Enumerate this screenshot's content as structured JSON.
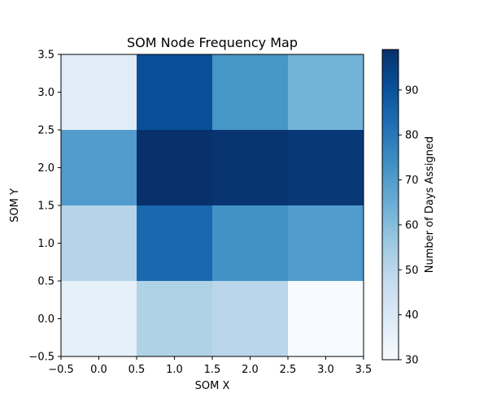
{
  "chart_data": {
    "type": "heatmap",
    "title": "SOM Node Frequency Map",
    "xlabel": "SOM X",
    "ylabel": "SOM Y",
    "colorbar_label": "Number of Days Assigned",
    "colormap": "Blues",
    "x": [
      0,
      1,
      2,
      3
    ],
    "y": [
      0,
      1,
      2,
      3
    ],
    "values": [
      [
        36,
        52,
        50,
        30
      ],
      [
        51,
        84,
        73,
        70
      ],
      [
        70,
        99,
        98,
        97
      ],
      [
        38,
        91,
        72,
        63
      ]
    ],
    "xlim": [
      -0.5,
      3.5
    ],
    "ylim": [
      -0.5,
      3.5
    ],
    "xticks": [
      "−0.5",
      "0.0",
      "0.5",
      "1.0",
      "1.5",
      "2.0",
      "2.5",
      "3.0",
      "3.5"
    ],
    "yticks": [
      "−0.5",
      "0.0",
      "0.5",
      "1.0",
      "1.5",
      "2.0",
      "2.5",
      "3.0",
      "3.5"
    ],
    "color_range": [
      30,
      99
    ],
    "colorbar_ticks": [
      "30",
      "40",
      "50",
      "60",
      "70",
      "80",
      "90"
    ]
  }
}
